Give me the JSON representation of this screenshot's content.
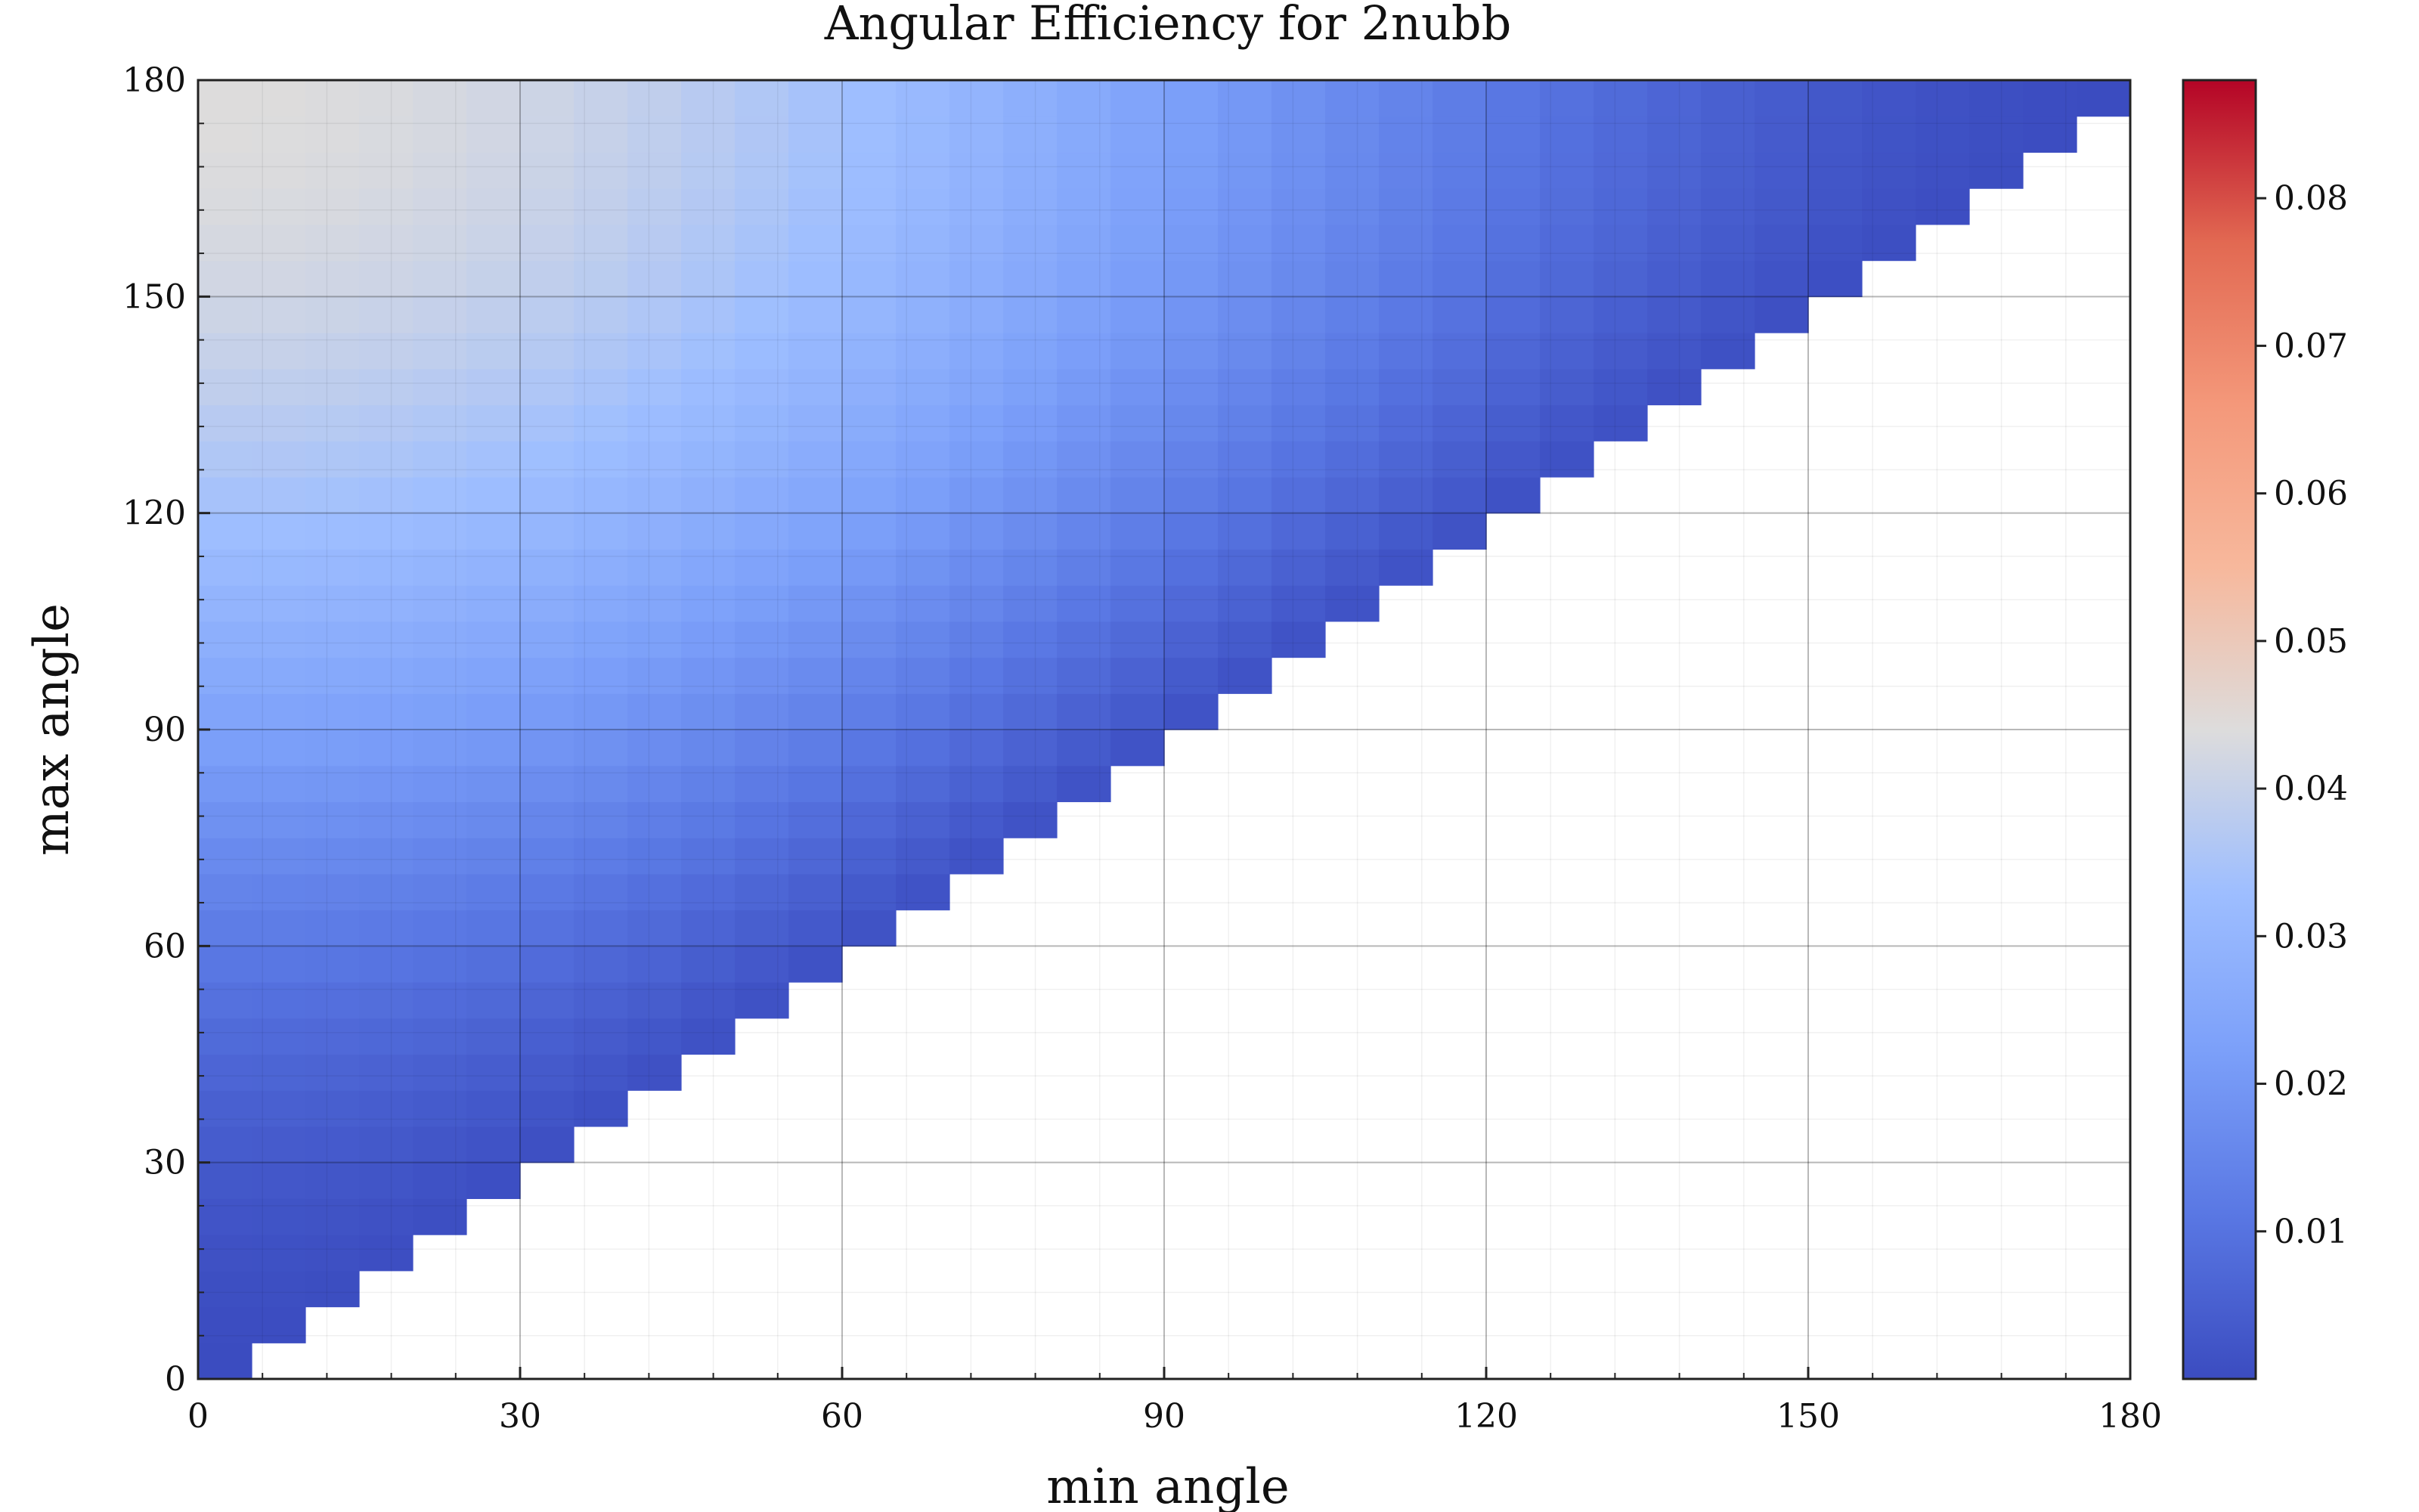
{
  "chart_data": {
    "type": "heatmap",
    "title": "Angular Efficiency for 2nubb",
    "xlabel": "min angle",
    "ylabel": "max angle",
    "xlim": [
      0,
      180
    ],
    "ylim": [
      0,
      180
    ],
    "xticks": [
      "0",
      "30",
      "60",
      "90",
      "120",
      "150",
      "180"
    ],
    "yticks": [
      "0",
      "30",
      "60",
      "90",
      "120",
      "150",
      "180"
    ],
    "bin_size_x": 5,
    "bin_size_y": 5,
    "colormap": "coolwarm",
    "colorbar": {
      "min": 0.0,
      "max": 0.088,
      "ticks": [
        "0.01",
        "0.02",
        "0.03",
        "0.04",
        "0.05",
        "0.06",
        "0.07",
        "0.08"
      ],
      "tick_values": [
        0.01,
        0.02,
        0.03,
        0.04,
        0.05,
        0.06,
        0.07,
        0.08
      ]
    },
    "value_model": "efficiency(min, max) ≈ 0.5 * (cos(min) - cos(max)) * 0.088 / 2 ; defined only where max ≥ min",
    "grid": true
  }
}
